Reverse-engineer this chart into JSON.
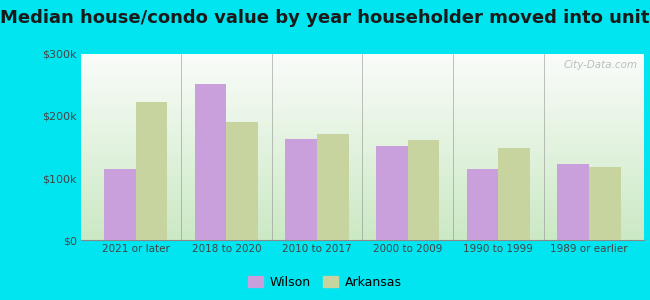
{
  "title": "Median house/condo value by year householder moved into unit",
  "categories": [
    "2021 or later",
    "2018 to 2020",
    "2010 to 2017",
    "2000 to 2009",
    "1990 to 1999",
    "1989 or earlier"
  ],
  "wilson_values": [
    115000,
    252000,
    163000,
    152000,
    115000,
    122000
  ],
  "arkansas_values": [
    222000,
    191000,
    171000,
    162000,
    148000,
    118000
  ],
  "wilson_color": "#c9a0dc",
  "arkansas_color": "#c8d4a0",
  "ylim": [
    0,
    300000
  ],
  "yticks": [
    0,
    100000,
    200000,
    300000
  ],
  "ytick_labels": [
    "$0",
    "$100k",
    "$200k",
    "$300k"
  ],
  "plot_bg_top": "#e8f5e8",
  "plot_bg_bottom": "#d8f0d8",
  "outer_background": "#00e5f0",
  "watermark": "City-Data.com",
  "legend_labels": [
    "Wilson",
    "Arkansas"
  ],
  "bar_width": 0.35,
  "title_fontsize": 13
}
